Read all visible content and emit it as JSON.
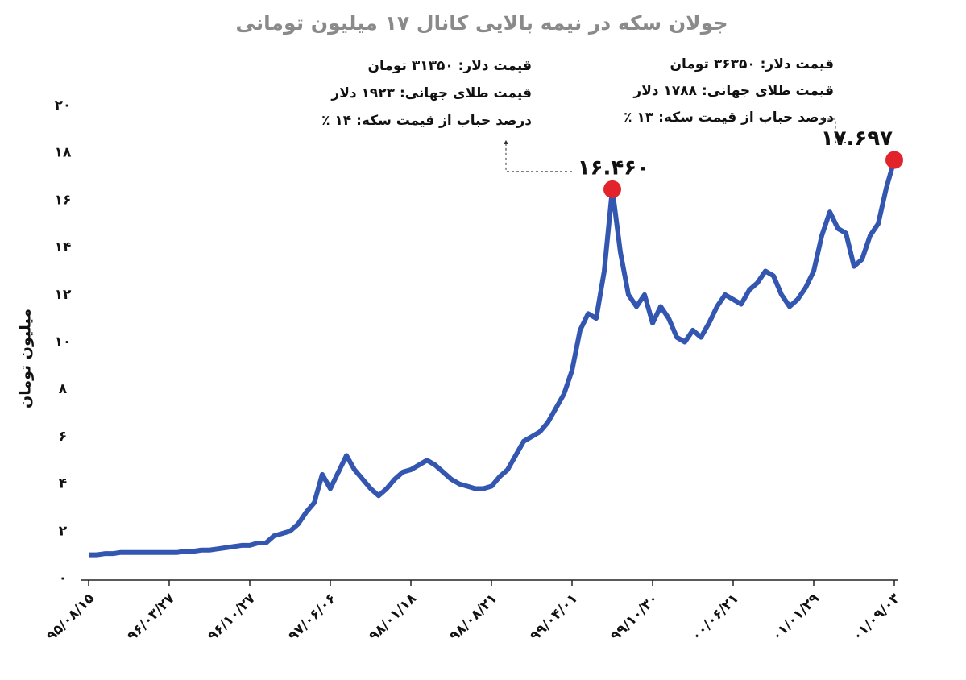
{
  "chart_data": {
    "type": "line",
    "title": "جولان سکه در نیمه بالایی کانال ۱۷ میلیون تومانی",
    "y_label": "میلیون تومان",
    "color": "#3356b0",
    "marker_color": "#e3232b",
    "categories": [
      "۹۵/۰۸/۱۵",
      null,
      null,
      null,
      null,
      null,
      null,
      null,
      null,
      null,
      "۹۶/۰۳/۲۷",
      null,
      null,
      null,
      null,
      null,
      null,
      null,
      null,
      null,
      "۹۶/۱۰/۲۷",
      null,
      null,
      null,
      null,
      null,
      null,
      null,
      null,
      null,
      "۹۷/۰۶/۰۶",
      null,
      null,
      null,
      null,
      null,
      null,
      null,
      null,
      null,
      "۹۸/۰۱/۱۸",
      null,
      null,
      null,
      null,
      null,
      null,
      null,
      null,
      null,
      "۹۸/۰۸/۲۱",
      null,
      null,
      null,
      null,
      null,
      null,
      null,
      null,
      null,
      "۹۹/۰۴/۰۱",
      null,
      null,
      null,
      null,
      null,
      null,
      null,
      null,
      null,
      "۹۹/۱۰/۳۰",
      null,
      null,
      null,
      null,
      null,
      null,
      null,
      null,
      null,
      "۰۰/۰۶/۲۱",
      null,
      null,
      null,
      null,
      null,
      null,
      null,
      null,
      null,
      "۰۱/۰۱/۲۹",
      null,
      null,
      null,
      null,
      null,
      null,
      null,
      null,
      null,
      "۰۱/۰۹/۰۳"
    ],
    "values": [
      1.0,
      1.0,
      1.05,
      1.05,
      1.1,
      1.1,
      1.1,
      1.1,
      1.1,
      1.1,
      1.1,
      1.1,
      1.15,
      1.15,
      1.2,
      1.2,
      1.25,
      1.3,
      1.35,
      1.4,
      1.4,
      1.5,
      1.5,
      1.8,
      1.9,
      2.0,
      2.3,
      2.8,
      3.2,
      4.4,
      3.8,
      4.5,
      5.2,
      4.6,
      4.2,
      3.8,
      3.5,
      3.8,
      4.2,
      4.5,
      4.6,
      4.8,
      5.0,
      4.8,
      4.5,
      4.2,
      4.0,
      3.9,
      3.8,
      3.8,
      3.9,
      4.3,
      4.6,
      5.2,
      5.8,
      6.0,
      6.2,
      6.6,
      7.2,
      7.8,
      8.8,
      10.5,
      11.2,
      11.0,
      13.0,
      16.46,
      13.8,
      12.0,
      11.5,
      12.0,
      10.8,
      11.5,
      11.0,
      10.2,
      10.0,
      10.5,
      10.2,
      10.8,
      11.5,
      12.0,
      11.8,
      11.6,
      12.2,
      12.5,
      13.0,
      12.8,
      12.0,
      11.5,
      11.8,
      12.3,
      13.0,
      14.5,
      15.5,
      14.8,
      14.6,
      13.2,
      13.5,
      14.5,
      15.0,
      16.5,
      17.697
    ],
    "value_labels": [
      null,
      null,
      null,
      null,
      null,
      null,
      null,
      null,
      null,
      null,
      null,
      null,
      null,
      null,
      null,
      null,
      null,
      null,
      null,
      null,
      null,
      null,
      null,
      null,
      null,
      null,
      null,
      null,
      null,
      null,
      null,
      null,
      null,
      null,
      null,
      null,
      null,
      null,
      null,
      null,
      null,
      null,
      null,
      null,
      null,
      null,
      null,
      null,
      null,
      null,
      null,
      null,
      null,
      null,
      null,
      null,
      null,
      null,
      null,
      null,
      null,
      null,
      null,
      null,
      null,
      "۱۶.۴۶۰",
      null,
      null,
      null,
      null,
      null,
      null,
      null,
      null,
      null,
      null,
      null,
      null,
      null,
      null,
      null,
      null,
      null,
      null,
      null,
      null,
      null,
      null,
      null,
      null,
      null,
      null,
      null,
      null,
      null,
      null,
      null,
      null,
      null,
      null,
      "۱۷.۶۹۷"
    ],
    "ylim": [
      0,
      20
    ],
    "yticks": [
      {
        "value": 0,
        "label": "۰"
      },
      {
        "value": 2,
        "label": "۲"
      },
      {
        "value": 4,
        "label": "۴"
      },
      {
        "value": 6,
        "label": "۶"
      },
      {
        "value": 8,
        "label": "۸"
      },
      {
        "value": 10,
        "label": "۱۰"
      },
      {
        "value": 12,
        "label": "۱۲"
      },
      {
        "value": 14,
        "label": "۱۴"
      },
      {
        "value": 16,
        "label": "۱۶"
      },
      {
        "value": 18,
        "label": "۱۸"
      },
      {
        "value": 20,
        "label": "۲۰"
      }
    ],
    "annotations": [
      [
        "قیمت دلار: ۳۱۳۵۰ تومان",
        "قیمت طلای جهانی: ۱۹۲۳ دلار",
        "درصد حباب از قیمت سکه: ۱۴ ٪"
      ],
      [
        "قیمت دلار: ۳۶۳۵۰ تومان",
        "قیمت طلای جهانی: ۱۷۸۸ دلار",
        "درصد حباب از قیمت سکه: ۱۳ ٪"
      ]
    ]
  }
}
